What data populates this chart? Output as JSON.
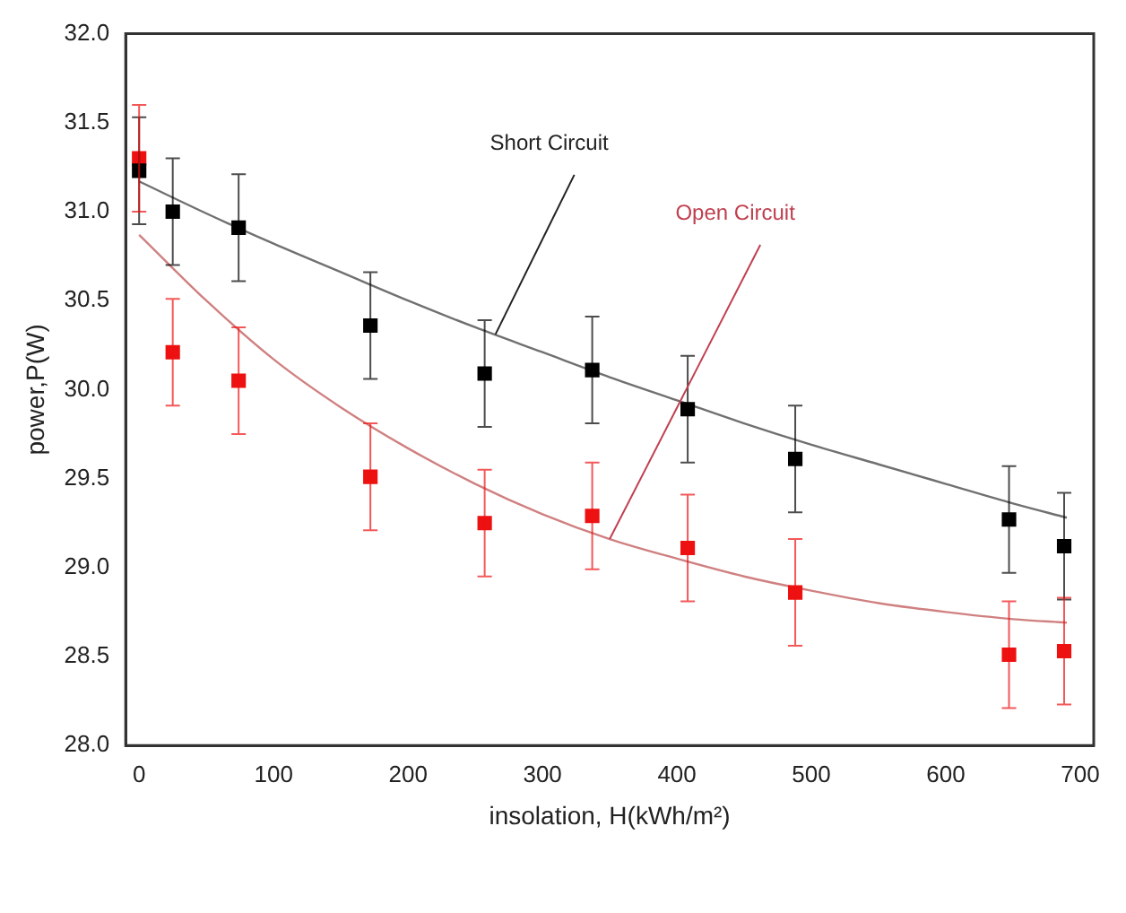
{
  "chart_data": {
    "type": "scatter",
    "xlabel": "insolation, H(kWh/m²)",
    "ylabel": "power,P(W)",
    "xlim": [
      -10,
      710
    ],
    "xticks": [
      0,
      100,
      200,
      300,
      400,
      500,
      600,
      700
    ],
    "ylim": [
      28.0,
      32.0
    ],
    "yticks": [
      {
        "value": 28.0,
        "label": "28.0"
      },
      {
        "value": 28.5,
        "label": "28.5"
      },
      {
        "value": 29.0,
        "label": "29.0"
      },
      {
        "value": 29.5,
        "label": "29.5"
      },
      {
        "value": 30.0,
        "label": "30.0"
      },
      {
        "value": 30.5,
        "label": "30.5"
      },
      {
        "value": 31.0,
        "label": "31.0"
      },
      {
        "value": 31.5,
        "label": "31.5"
      },
      {
        "value": 32.0,
        "label": "32.0"
      }
    ],
    "grid": false,
    "legend": false,
    "marker": "square",
    "series": [
      {
        "color": "#000000",
        "x": [
          0,
          25,
          74,
          172,
          257,
          337,
          408,
          488,
          647,
          688
        ],
        "values": [
          31.23,
          31.0,
          30.91,
          30.36,
          30.09,
          30.11,
          29.89,
          29.61,
          29.27,
          29.12
        ],
        "errors": [
          0.3,
          0.3,
          0.3,
          0.3,
          0.3,
          0.3,
          0.3,
          0.3,
          0.3,
          0.3
        ]
      },
      {
        "color": "#ee1111",
        "x": [
          0,
          25,
          74,
          172,
          257,
          337,
          408,
          488,
          647,
          688
        ],
        "values": [
          31.3,
          30.21,
          30.05,
          29.51,
          29.25,
          29.29,
          29.11,
          28.86,
          28.51,
          28.53
        ],
        "errors": [
          0.3,
          0.3,
          0.3,
          0.3,
          0.3,
          0.3,
          0.3,
          0.3,
          0.3,
          0.3
        ]
      },
      {
        "type": "line",
        "color": "#707070",
        "marker": "none",
        "x": [
          0,
          50,
          100,
          150,
          200,
          250,
          300,
          350,
          400,
          450,
          500,
          550,
          600,
          650,
          690
        ],
        "values": [
          31.17,
          30.99,
          30.82,
          30.66,
          30.5,
          30.35,
          30.21,
          30.07,
          29.94,
          29.81,
          29.69,
          29.58,
          29.47,
          29.36,
          29.28
        ]
      },
      {
        "type": "line",
        "color": "#d08080",
        "marker": "none",
        "x": [
          0,
          50,
          100,
          150,
          200,
          250,
          300,
          350,
          400,
          450,
          500,
          550,
          600,
          650,
          690
        ],
        "values": [
          30.87,
          30.5,
          30.17,
          29.9,
          29.67,
          29.47,
          29.3,
          29.16,
          29.05,
          28.95,
          28.87,
          28.8,
          28.75,
          28.71,
          28.69
        ]
      }
    ],
    "annotations": [
      {
        "text": "Short Circuit",
        "x": 265,
        "y": 30.31
      },
      {
        "text": "Open Circuit",
        "x": 350,
        "y": 29.16
      }
    ]
  }
}
